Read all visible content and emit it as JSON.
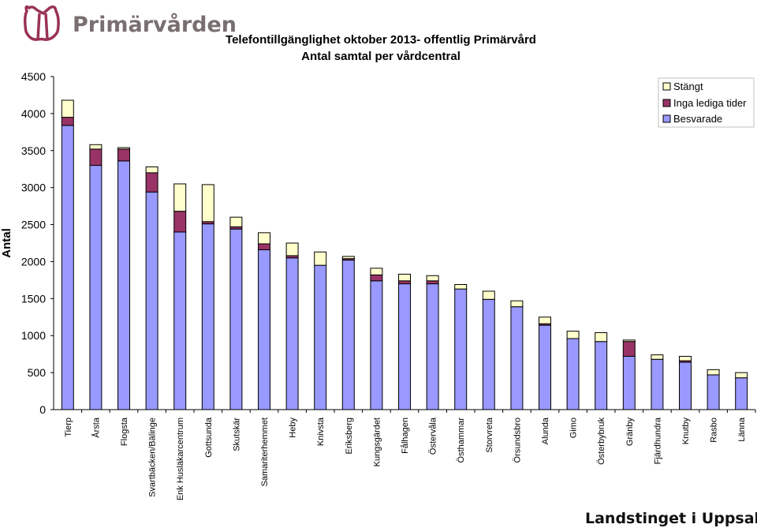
{
  "brand": {
    "name": "Primärvården"
  },
  "footer": {
    "org": "Landstinget i Uppsala län"
  },
  "chart_data": {
    "type": "bar",
    "stacked": true,
    "title": "Telefontillgänglighet oktober 2013- offentlig Primärvård",
    "subtitle": "Antal samtal per vårdcentral",
    "ylabel": "Antal",
    "xlabel": "",
    "ylim": [
      0,
      4500
    ],
    "yticks": [
      0,
      500,
      1000,
      1500,
      2000,
      2500,
      3000,
      3500,
      4000,
      4500
    ],
    "grid": false,
    "legend_position": "top-right",
    "categories": [
      "Tierp",
      "Årsta",
      "Flogsta",
      "Svartbäcken/Bälinge",
      "Enk Husläkarcentrum",
      "Gottsunda",
      "Skutskär",
      "Samariterhemmet",
      "Heby",
      "Knivsta",
      "Eriksberg",
      "Kungsgärdet",
      "Fålhagen",
      "Östervåla",
      "Östhammar",
      "Storvreta",
      "Örsundsbro",
      "Alunda",
      "Gimo",
      "Österbybruk",
      "Gränby",
      "Fjärdhundra",
      "Knutby",
      "Rasbo",
      "Länna"
    ],
    "series": [
      {
        "name": "Besvarade",
        "color": "#9999ff",
        "values": [
          3840,
          3300,
          3360,
          2940,
          2400,
          2510,
          2440,
          2160,
          2050,
          1950,
          2020,
          1740,
          1700,
          1700,
          1630,
          1490,
          1390,
          1140,
          960,
          920,
          720,
          680,
          640,
          470,
          430
        ]
      },
      {
        "name": "Inga lediga tider",
        "color": "#993366",
        "values": [
          110,
          220,
          160,
          260,
          280,
          30,
          30,
          80,
          30,
          0,
          20,
          80,
          40,
          40,
          0,
          0,
          0,
          20,
          0,
          0,
          200,
          0,
          20,
          0,
          0
        ]
      },
      {
        "name": "Stängt",
        "color": "#ffffcc",
        "values": [
          230,
          60,
          20,
          80,
          370,
          500,
          130,
          150,
          170,
          180,
          30,
          90,
          90,
          70,
          60,
          110,
          80,
          90,
          100,
          120,
          20,
          60,
          60,
          70,
          70
        ]
      }
    ]
  }
}
